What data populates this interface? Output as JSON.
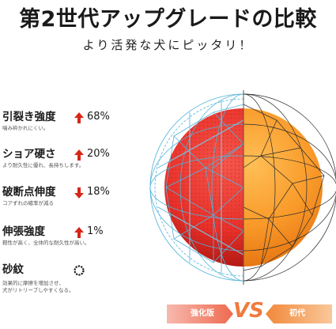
{
  "title": "第2世代アップグレードの比較",
  "subtitle": "より活発な犬にピッタリ！",
  "features": [
    {
      "name": "引裂き強度",
      "desc": "噛み砕かれにくい。",
      "direction": "up",
      "value": "68%"
    },
    {
      "name": "ショア硬さ",
      "desc": "より耐久性に優れ、長持ちします。",
      "direction": "up",
      "value": "20%"
    },
    {
      "name": "破断点伸度",
      "desc": "コアずれの確率が減る",
      "direction": "down",
      "value": "18%"
    },
    {
      "name": "伸張強度",
      "desc": "靭性が高く、全体的な耐久性が高い。",
      "direction": "up",
      "value": "1%"
    },
    {
      "name": "砂紋",
      "desc_lines": [
        "効果的に摩擦を増加させ、",
        "犬がリトリーブしやすくなる。"
      ],
      "icon": "texture-ring-icon"
    }
  ],
  "badges": {
    "new": "強化版",
    "vs": "VS",
    "old": "初代"
  },
  "colors": {
    "red_ball": "#e8312a",
    "orange_ball": "#f58a1f",
    "cage_blue": "#4fb3d9",
    "arrow_red": "#d62718",
    "vs_orange": "#f07a3e"
  }
}
